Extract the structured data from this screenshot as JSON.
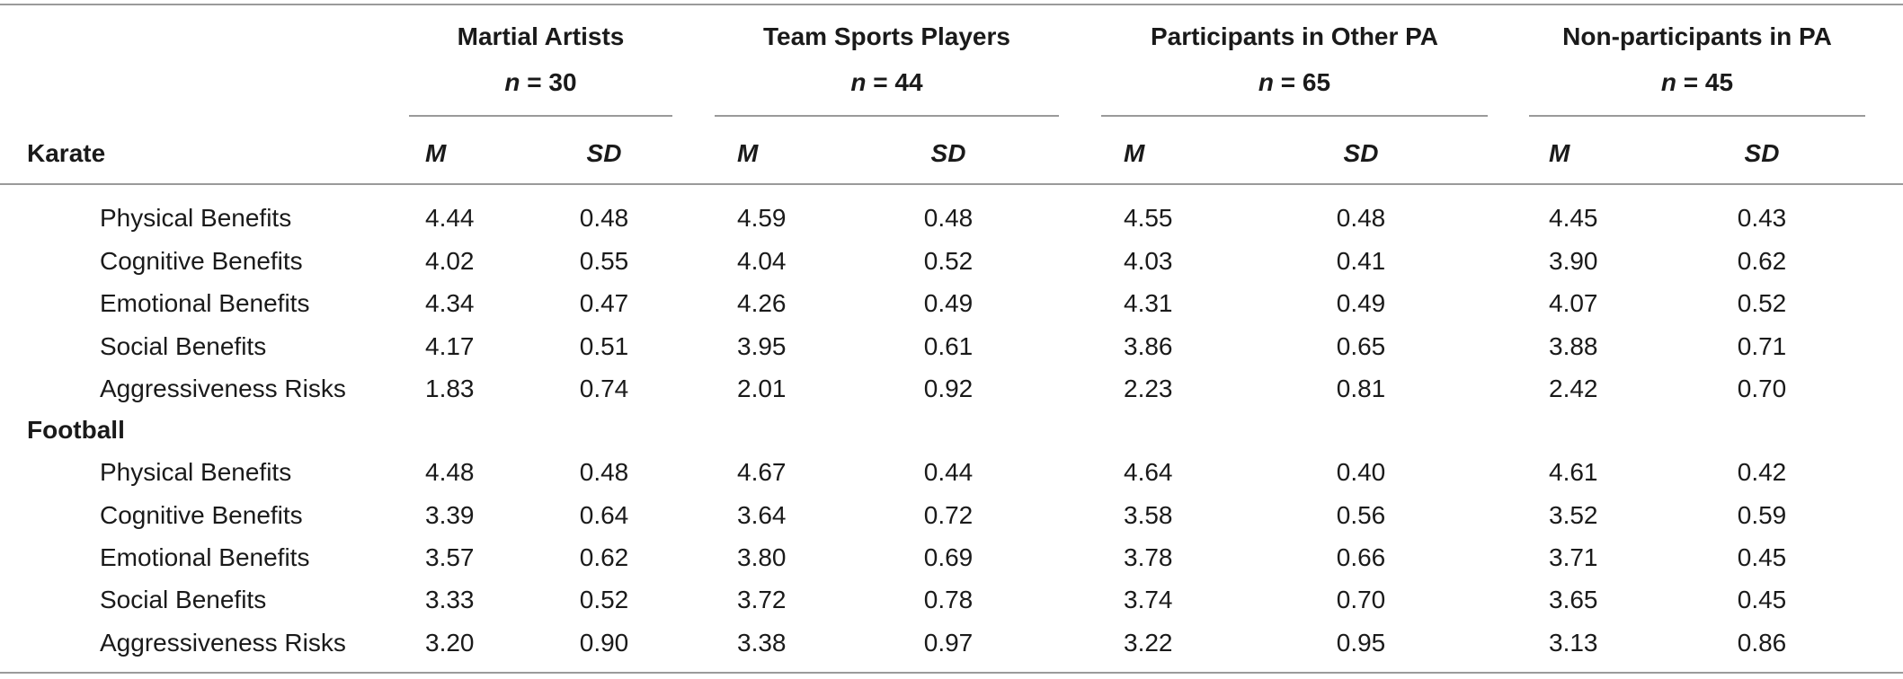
{
  "table": {
    "stub_header": "Karate",
    "groups": [
      {
        "name": "Martial Artists",
        "n_prefix": "n",
        "n_value": "= 30"
      },
      {
        "name": "Team Sports Players",
        "n_prefix": "n",
        "n_value": "= 44"
      },
      {
        "name": "Participants in Other PA",
        "n_prefix": "n",
        "n_value": "= 65"
      },
      {
        "name": "Non-participants in PA",
        "n_prefix": "n",
        "n_value": "= 45"
      }
    ],
    "subheaders": [
      "M",
      "SD"
    ],
    "sections": [
      {
        "title": "",
        "rows": [
          {
            "label": "Physical Benefits",
            "values": [
              "4.44",
              "0.48",
              "4.59",
              "0.48",
              "4.55",
              "0.48",
              "4.45",
              "0.43"
            ]
          },
          {
            "label": "Cognitive Benefits",
            "values": [
              "4.02",
              "0.55",
              "4.04",
              "0.52",
              "4.03",
              "0.41",
              "3.90",
              "0.62"
            ]
          },
          {
            "label": "Emotional Benefits",
            "values": [
              "4.34",
              "0.47",
              "4.26",
              "0.49",
              "4.31",
              "0.49",
              "4.07",
              "0.52"
            ]
          },
          {
            "label": "Social Benefits",
            "values": [
              "4.17",
              "0.51",
              "3.95",
              "0.61",
              "3.86",
              "0.65",
              "3.88",
              "0.71"
            ]
          },
          {
            "label": "Aggressiveness Risks",
            "values": [
              "1.83",
              "0.74",
              "2.01",
              "0.92",
              "2.23",
              "0.81",
              "2.42",
              "0.70"
            ]
          }
        ]
      },
      {
        "title": "Football",
        "rows": [
          {
            "label": "Physical Benefits",
            "values": [
              "4.48",
              "0.48",
              "4.67",
              "0.44",
              "4.64",
              "0.40",
              "4.61",
              "0.42"
            ]
          },
          {
            "label": "Cognitive Benefits",
            "values": [
              "3.39",
              "0.64",
              "3.64",
              "0.72",
              "3.58",
              "0.56",
              "3.52",
              "0.59"
            ]
          },
          {
            "label": "Emotional Benefits",
            "values": [
              "3.57",
              "0.62",
              "3.80",
              "0.69",
              "3.78",
              "0.66",
              "3.71",
              "0.45"
            ]
          },
          {
            "label": "Social Benefits",
            "values": [
              "3.33",
              "0.52",
              "3.72",
              "0.78",
              "3.74",
              "0.70",
              "3.65",
              "0.45"
            ]
          },
          {
            "label": "Aggressiveness Risks",
            "values": [
              "3.20",
              "0.90",
              "3.38",
              "0.97",
              "3.22",
              "0.95",
              "3.13",
              "0.86"
            ]
          }
        ]
      }
    ]
  }
}
